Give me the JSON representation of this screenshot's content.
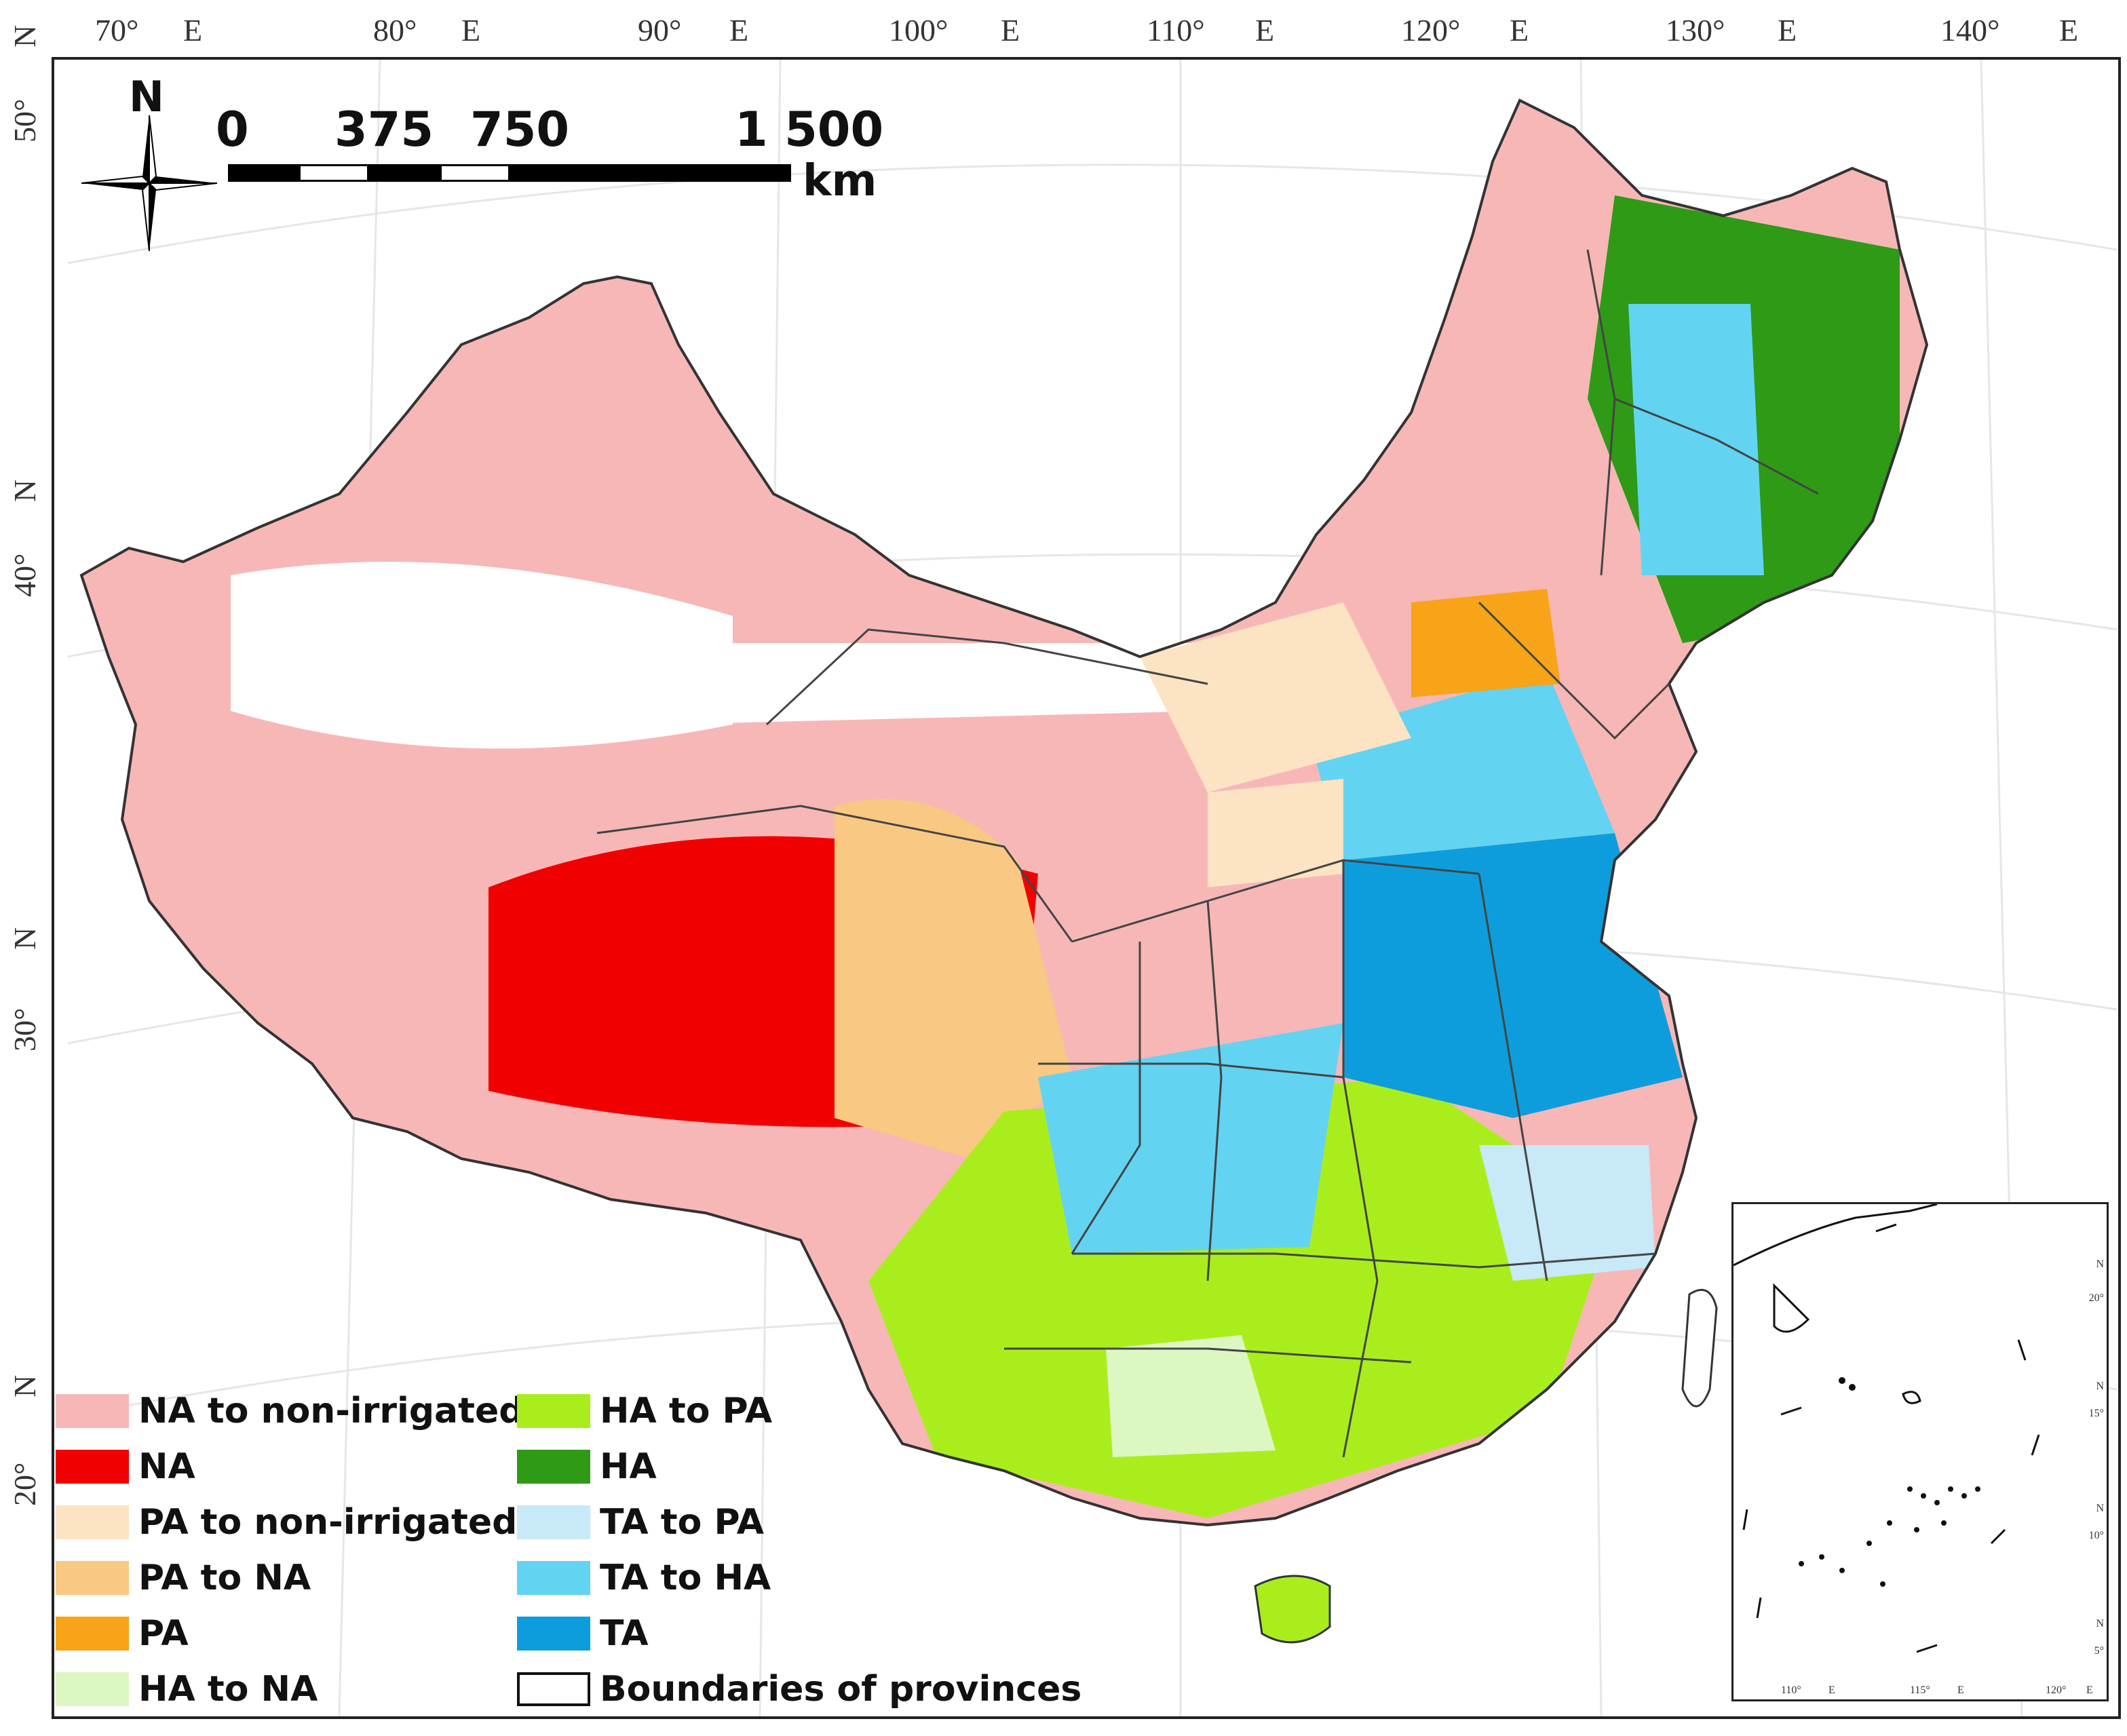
{
  "graticule": {
    "lon_labels": [
      "70°",
      "E",
      "80°",
      "E",
      "90°",
      "E",
      "100°",
      "E",
      "110°",
      "E",
      "120°",
      "E",
      "130°",
      "E",
      "140°",
      "E"
    ],
    "lat_labels": [
      "50°",
      "N",
      "40°",
      "N",
      "30°",
      "N",
      "20°",
      "N"
    ],
    "corner_label": "N"
  },
  "north_arrow": {
    "label": "N"
  },
  "scale_bar": {
    "labels": [
      "0",
      "375",
      "750",
      "1 500"
    ],
    "unit": "km"
  },
  "legend": {
    "items": [
      {
        "label": "NA to non-irrigated",
        "color": "#F7B7B7"
      },
      {
        "label": "NA",
        "color": "#F00000"
      },
      {
        "label": "PA to non-irrigated",
        "color": "#FCE3C4"
      },
      {
        "label": "PA to NA",
        "color": "#F9C882"
      },
      {
        "label": "PA",
        "color": "#F7A418"
      },
      {
        "label": "HA to NA",
        "color": "#DDF7C2"
      },
      {
        "label": "HA to PA",
        "color": "#A9EE1C"
      },
      {
        "label": "HA",
        "color": "#2E9A16"
      },
      {
        "label": "TA to PA",
        "color": "#C7E9F8"
      },
      {
        "label": "TA to HA",
        "color": "#63D3F2"
      },
      {
        "label": "TA",
        "color": "#0E9DDC"
      },
      {
        "label": "Boundaries of provinces",
        "color": "#FFFFFF"
      }
    ]
  },
  "inset": {
    "lon_labels": [
      "110°",
      "E",
      "115°",
      "E",
      "120°",
      "E"
    ],
    "lat_labels": [
      "20°",
      "N",
      "15°",
      "N",
      "10°",
      "N",
      "5°",
      "N"
    ]
  }
}
